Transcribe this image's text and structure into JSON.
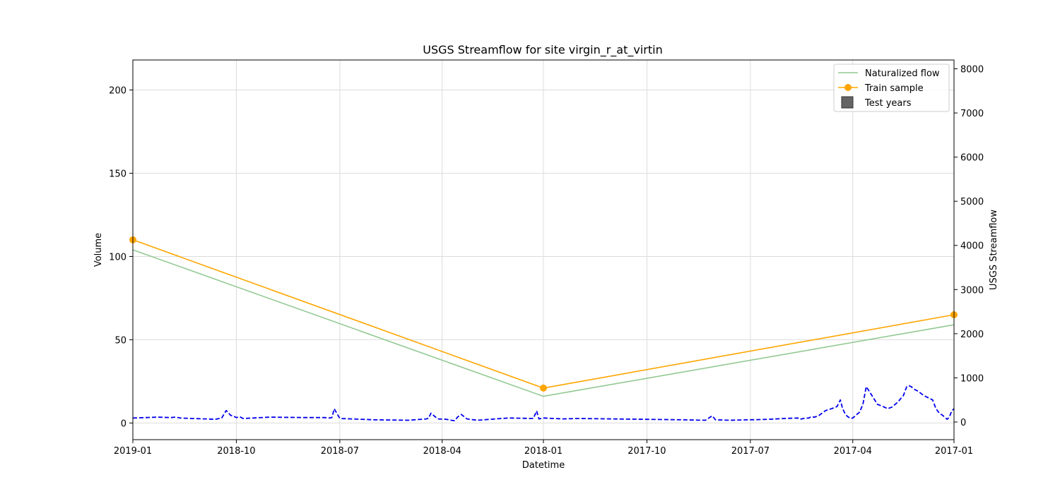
{
  "chart_data": {
    "type": "line",
    "title": "USGS Streamflow for site virgin_r_at_virtin",
    "xlabel": "Datetime",
    "ylabel": "Volume",
    "y2label": "USGS Streamflow",
    "xlim": [
      "2019-01-01",
      "2017-01-01"
    ],
    "x_inverted": true,
    "ylim": [
      -10,
      218
    ],
    "y2lim": [
      -400,
      8200
    ],
    "x_ticks": [
      "2019-01-01",
      "2018-10-01",
      "2018-07-01",
      "2018-04-01",
      "2018-01-01",
      "2017-10-01",
      "2017-07-01",
      "2017-04-01",
      "2017-01-01"
    ],
    "x_tick_labels": [
      "2019-01",
      "2018-10",
      "2018-07",
      "2018-04",
      "2018-01",
      "2017-10",
      "2017-07",
      "2017-04",
      "2017-01"
    ],
    "y_ticks": [
      0,
      50,
      100,
      150,
      200
    ],
    "y2_ticks": [
      0,
      1000,
      2000,
      3000,
      4000,
      5000,
      6000,
      7000,
      8000
    ],
    "grid": true,
    "legend": {
      "position": "top-right",
      "entries": [
        {
          "label": "Naturalized flow",
          "color": "#93c993",
          "marker": "line"
        },
        {
          "label": "Train sample",
          "color": "#ffa500",
          "marker": "line-circle"
        },
        {
          "label": "Test years",
          "color": "#646464",
          "marker": "square"
        }
      ]
    },
    "series": [
      {
        "name": "Naturalized flow",
        "axis": "left",
        "color": "#93c993",
        "x": [
          "2019-01-01",
          "2018-01-01",
          "2017-01-01"
        ],
        "values": [
          104,
          16,
          59
        ]
      },
      {
        "name": "Train sample",
        "axis": "left",
        "color": "#ffa500",
        "x": [
          "2019-01-01",
          "2018-01-01",
          "2017-01-01"
        ],
        "values": [
          110,
          21,
          65
        ]
      },
      {
        "name": "USGS Streamflow",
        "axis": "right",
        "color": "#0000ee",
        "style": "dashed",
        "x": [
          "2019-01-01",
          "2018-12-20",
          "2018-12-10",
          "2018-11-28",
          "2018-11-24",
          "2018-11-20",
          "2018-11-10",
          "2018-10-28",
          "2018-10-20",
          "2018-10-14",
          "2018-10-10",
          "2018-10-06",
          "2018-10-03",
          "2018-10-02",
          "2018-10-01",
          "2018-09-28",
          "2018-09-25",
          "2018-09-01",
          "2018-08-01",
          "2018-07-15",
          "2018-07-10",
          "2018-07-08",
          "2018-07-06",
          "2018-07-01",
          "2018-06-01",
          "2018-05-01",
          "2018-04-15",
          "2018-04-13",
          "2018-04-11",
          "2018-04-05",
          "2018-03-28",
          "2018-03-24",
          "2018-03-21",
          "2018-03-18",
          "2018-03-15",
          "2018-03-10",
          "2018-03-01",
          "2018-02-01",
          "2018-01-10",
          "2018-01-07",
          "2018-01-05",
          "2018-01-01",
          "2017-12-15",
          "2017-12-01",
          "2017-11-01",
          "2017-10-01",
          "2017-09-01",
          "2017-08-10",
          "2017-08-04",
          "2017-08-01",
          "2017-07-20",
          "2017-07-01",
          "2017-06-15",
          "2017-06-01",
          "2017-05-20",
          "2017-05-18",
          "2017-05-15",
          "2017-05-10",
          "2017-05-08",
          "2017-05-05",
          "2017-05-01",
          "2017-04-25",
          "2017-04-20",
          "2017-04-15",
          "2017-04-12",
          "2017-04-10",
          "2017-04-08",
          "2017-04-06",
          "2017-04-03",
          "2017-04-01",
          "2017-03-28",
          "2017-03-26",
          "2017-03-23",
          "2017-03-20",
          "2017-03-15",
          "2017-03-10",
          "2017-03-05",
          "2017-03-01",
          "2017-02-25",
          "2017-02-20",
          "2017-02-15",
          "2017-02-12",
          "2017-02-10",
          "2017-02-08",
          "2017-02-06",
          "2017-02-02",
          "2017-01-28",
          "2017-01-20",
          "2017-01-17",
          "2017-01-14",
          "2017-01-11",
          "2017-01-09",
          "2017-01-07",
          "2017-01-05",
          "2017-01-03",
          "2017-01-01"
        ],
        "values": [
          90,
          100,
          110,
          100,
          110,
          90,
          80,
          70,
          60,
          90,
          260,
          150,
          130,
          110,
          100,
          120,
          80,
          110,
          100,
          100,
          90,
          100,
          300,
          80,
          50,
          40,
          70,
          90,
          200,
          70,
          60,
          40,
          30,
          120,
          170,
          70,
          40,
          90,
          80,
          250,
          70,
          90,
          70,
          80,
          70,
          60,
          50,
          40,
          140,
          50,
          40,
          50,
          60,
          80,
          90,
          60,
          80,
          90,
          120,
          110,
          150,
          260,
          300,
          350,
          500,
          300,
          200,
          130,
          80,
          90,
          180,
          220,
          400,
          800,
          600,
          400,
          350,
          300,
          340,
          450,
          600,
          800,
          820,
          800,
          750,
          700,
          600,
          500,
          300,
          200,
          150,
          100,
          60,
          120,
          250,
          300
        ]
      }
    ]
  }
}
